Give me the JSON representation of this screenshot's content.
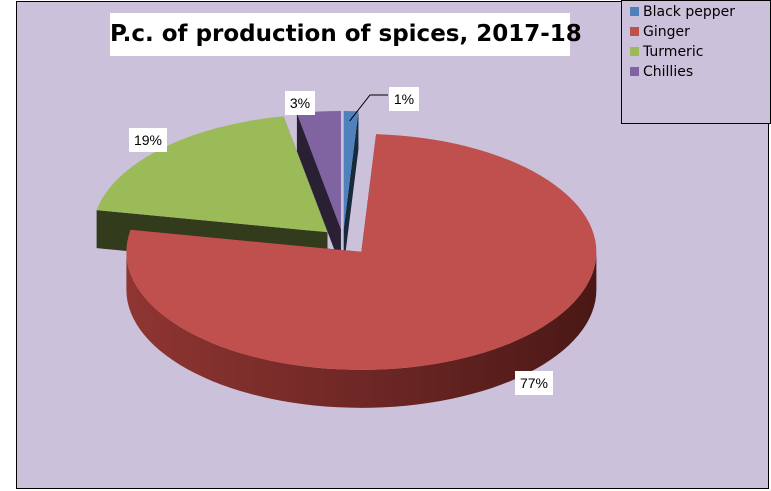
{
  "chart_data": {
    "type": "pie",
    "title": "P.c. of production of spices, 2017-18",
    "categories": [
      "Black pepper",
      "Ginger",
      "Turmeric",
      "Chillies"
    ],
    "values": [
      1,
      77,
      19,
      3
    ],
    "data_labels": [
      "1%",
      "77%",
      "19%",
      "3%"
    ],
    "legend_position": "top-right",
    "exploded": true,
    "three_d": true
  },
  "colors": {
    "Black pepper": "#4f81bd",
    "Ginger": "#c0504d",
    "Turmeric": "#9bbb59",
    "Chillies": "#8064a2",
    "background": "#ccc1da"
  }
}
